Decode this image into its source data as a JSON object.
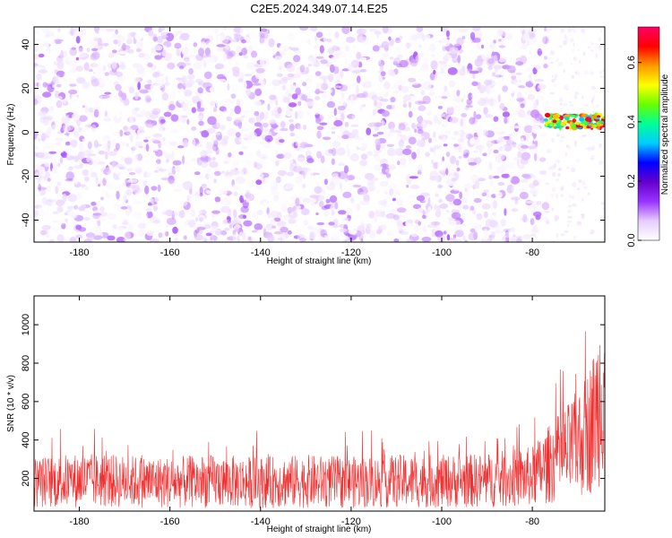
{
  "figure": {
    "title": "C2E5.2024.349.07.14.E25"
  },
  "chart_data": [
    {
      "type": "heatmap",
      "title": "C2E5.2024.349.07.14.E25",
      "xlabel": "Height of straight line (km)",
      "ylabel": "Frequency (Hz)",
      "xlim": [
        -190,
        -64
      ],
      "ylim": [
        -50,
        48
      ],
      "x_ticks": [
        -180,
        -160,
        -140,
        -120,
        -100,
        -80
      ],
      "y_ticks": [
        -40,
        -20,
        0,
        20,
        40
      ],
      "colorbar": {
        "label": "Normalized spectral amplitude",
        "range": [
          0,
          0.72
        ],
        "ticks": [
          0.0,
          0.2,
          0.4,
          0.6
        ],
        "tick_labels": [
          "0.0",
          "0.2",
          "0.4",
          "0.6"
        ],
        "colors": [
          "#ffffff",
          "#e6ccff",
          "#9933ff",
          "#6600cc",
          "#0000ff",
          "#00ccff",
          "#00ff99",
          "#66ff00",
          "#ffff00",
          "#ff9900",
          "#ff0000",
          "#ff0066"
        ]
      },
      "noise_region": {
        "x_range": [
          -190,
          -77
        ],
        "typical_amplitude": [
          0.0,
          0.12
        ]
      },
      "signal_band": {
        "x_range": [
          -77,
          -64
        ],
        "frequency_hz": 5,
        "amplitude": [
          0.3,
          0.72
        ]
      }
    },
    {
      "type": "line",
      "xlabel": "Height of straight line (km)",
      "ylabel": "SNR (10 * v/v)",
      "xlim": [
        -190,
        -64
      ],
      "ylim": [
        30,
        1150
      ],
      "x_ticks": [
        -180,
        -160,
        -140,
        -120,
        -100,
        -80
      ],
      "y_ticks": [
        200,
        400,
        600,
        800,
        1000
      ],
      "color": "#f03030",
      "x": [
        -190,
        -180,
        -170,
        -160,
        -150,
        -140,
        -130,
        -120,
        -110,
        -100,
        -90,
        -80,
        -76,
        -72,
        -70,
        -68,
        -66,
        -65,
        -64
      ],
      "y": [
        180,
        190,
        185,
        180,
        185,
        180,
        185,
        180,
        185,
        185,
        190,
        210,
        280,
        340,
        380,
        430,
        520,
        650,
        820
      ]
    }
  ]
}
